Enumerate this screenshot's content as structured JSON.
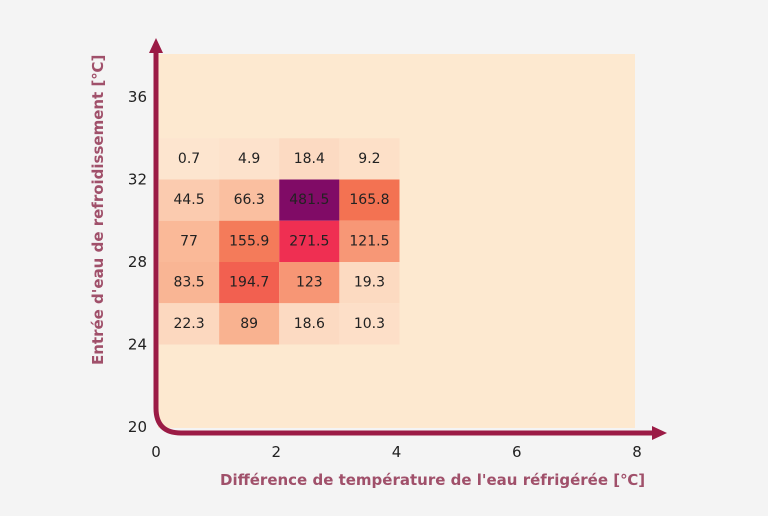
{
  "chart_data": {
    "type": "heatmap",
    "title": "",
    "xlabel": "Différence de température de l'eau réfrigérée [℃]",
    "ylabel": "Entrée d'eau de refroidissement [℃]",
    "xlim": [
      0,
      8
    ],
    "ylim": [
      20,
      38
    ],
    "xticks": [
      "0",
      "2",
      "4",
      "6",
      "8"
    ],
    "yticks": [
      "20",
      "24",
      "28",
      "32",
      "36"
    ],
    "x_bins": [
      [
        0,
        1
      ],
      [
        1,
        2
      ],
      [
        2,
        3
      ],
      [
        3,
        4
      ]
    ],
    "y_bins": [
      [
        32,
        34
      ],
      [
        30,
        32
      ],
      [
        28,
        30
      ],
      [
        26,
        28
      ],
      [
        24,
        26
      ]
    ],
    "values": [
      [
        0.7,
        4.9,
        18.4,
        9.2
      ],
      [
        44.5,
        66.3,
        481.5,
        165.8
      ],
      [
        77,
        155.9,
        271.5,
        121.5
      ],
      [
        83.5,
        194.7,
        123,
        19.3
      ],
      [
        22.3,
        89,
        18.6,
        10.3
      ]
    ],
    "colormap": [
      "#fde5cf",
      "#f9b18f",
      "#f36f4f",
      "#ef2a52",
      "#7b0a67"
    ],
    "colors": {
      "axis": "#9b1b45",
      "plot_background": "#fde9d0",
      "page_background": "#f4f4f4"
    },
    "grid": false,
    "legend": "none"
  }
}
